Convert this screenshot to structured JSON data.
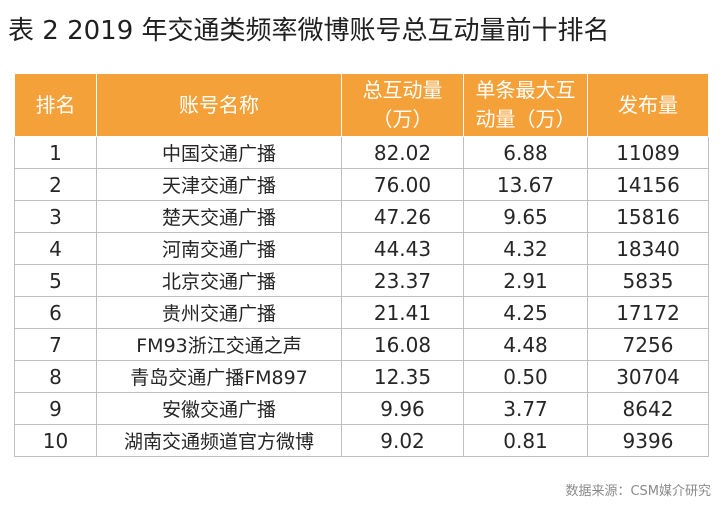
{
  "title": "表 2 2019 年交通类频率微博账号总互动量前十排名",
  "table": {
    "headers": {
      "rank": "排名",
      "account": "账号名称",
      "total_line1": "总互动量",
      "total_line2": "（万）",
      "single_line1": "单条最大互",
      "single_line2": "动量（万）",
      "posts": "发布量"
    },
    "rows": [
      {
        "rank": "1",
        "account": "中国交通广播",
        "total": "82.02",
        "single_max": "6.88",
        "posts": "11089"
      },
      {
        "rank": "2",
        "account": "天津交通广播",
        "total": "76.00",
        "single_max": "13.67",
        "posts": "14156"
      },
      {
        "rank": "3",
        "account": "楚天交通广播",
        "total": "47.26",
        "single_max": "9.65",
        "posts": "15816"
      },
      {
        "rank": "4",
        "account": "河南交通广播",
        "total": "44.43",
        "single_max": "4.32",
        "posts": "18340"
      },
      {
        "rank": "5",
        "account": "北京交通广播",
        "total": "23.37",
        "single_max": "2.91",
        "posts": "5835"
      },
      {
        "rank": "6",
        "account": "贵州交通广播",
        "total": "21.41",
        "single_max": "4.25",
        "posts": "17172"
      },
      {
        "rank": "7",
        "account": "FM93浙江交通之声",
        "total": "16.08",
        "single_max": "4.48",
        "posts": "7256"
      },
      {
        "rank": "8",
        "account": "青岛交通广播FM897",
        "total": "12.35",
        "single_max": "0.50",
        "posts": "30704"
      },
      {
        "rank": "9",
        "account": "安徽交通广播",
        "total": "9.96",
        "single_max": "3.77",
        "posts": "8642"
      },
      {
        "rank": "10",
        "account": "湖南交通频道官方微博",
        "total": "9.02",
        "single_max": "0.81",
        "posts": "9396"
      }
    ]
  },
  "source": "数据来源：CSM媒介研究",
  "colors": {
    "header_bg": "#f5a13a",
    "header_text": "#ffffff",
    "border": "#bfbfbf"
  }
}
